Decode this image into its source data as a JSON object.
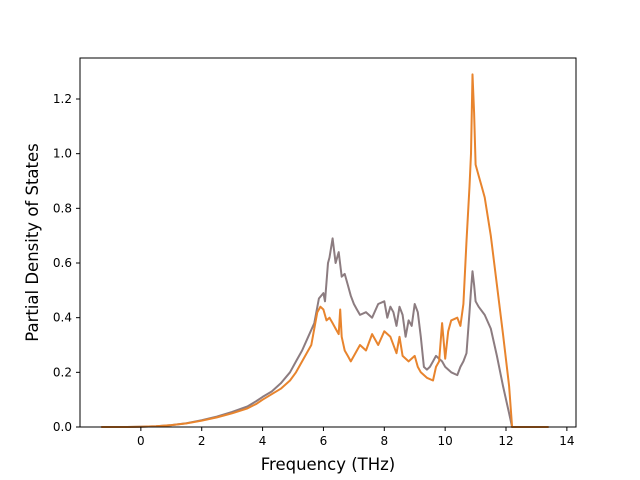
{
  "chart_data": {
    "type": "line",
    "title": "",
    "xlabel": "Frequency (THz)",
    "ylabel": "Partial Density of States",
    "xlim": [
      -2.0,
      14.3
    ],
    "ylim": [
      0.0,
      1.35
    ],
    "xticks": [
      0,
      2,
      4,
      6,
      8,
      10,
      12,
      14
    ],
    "yticks": [
      0.0,
      0.2,
      0.4,
      0.6,
      0.8,
      1.0,
      1.2
    ],
    "xtick_labels": [
      "0",
      "2",
      "4",
      "6",
      "8",
      "10",
      "12",
      "14"
    ],
    "ytick_labels": [
      "0.0",
      "0.2",
      "0.4",
      "0.6",
      "0.8",
      "1.0",
      "1.2"
    ],
    "grid": false,
    "legend": false,
    "series": [
      {
        "color": "#8c7c80",
        "x": [
          -1.3,
          -0.5,
          0.0,
          0.5,
          1.0,
          1.5,
          2.0,
          2.5,
          3.0,
          3.5,
          3.8,
          4.0,
          4.3,
          4.6,
          4.9,
          5.1,
          5.3,
          5.5,
          5.7,
          5.85,
          6.0,
          6.05,
          6.15,
          6.2,
          6.3,
          6.4,
          6.5,
          6.6,
          6.7,
          6.8,
          6.9,
          7.0,
          7.1,
          7.2,
          7.4,
          7.6,
          7.8,
          8.0,
          8.1,
          8.2,
          8.3,
          8.4,
          8.5,
          8.6,
          8.7,
          8.8,
          8.9,
          9.0,
          9.1,
          9.2,
          9.3,
          9.4,
          9.5,
          9.6,
          9.7,
          9.8,
          9.9,
          10.0,
          10.2,
          10.4,
          10.5,
          10.6,
          10.7,
          10.8,
          10.85,
          10.9,
          10.95,
          11.0,
          11.1,
          11.3,
          11.5,
          11.7,
          11.9,
          12.1,
          12.2,
          12.5,
          13.4
        ],
        "y": [
          0.0,
          0.0,
          0.001,
          0.003,
          0.007,
          0.014,
          0.025,
          0.038,
          0.055,
          0.075,
          0.095,
          0.11,
          0.13,
          0.16,
          0.2,
          0.24,
          0.28,
          0.33,
          0.38,
          0.47,
          0.49,
          0.46,
          0.6,
          0.62,
          0.69,
          0.6,
          0.64,
          0.55,
          0.56,
          0.52,
          0.48,
          0.45,
          0.43,
          0.41,
          0.42,
          0.4,
          0.45,
          0.46,
          0.4,
          0.44,
          0.42,
          0.37,
          0.44,
          0.41,
          0.33,
          0.39,
          0.37,
          0.45,
          0.42,
          0.33,
          0.22,
          0.21,
          0.22,
          0.24,
          0.26,
          0.25,
          0.24,
          0.22,
          0.2,
          0.19,
          0.22,
          0.24,
          0.27,
          0.42,
          0.5,
          0.57,
          0.52,
          0.46,
          0.44,
          0.41,
          0.36,
          0.26,
          0.15,
          0.05,
          0.0,
          0.0,
          0.0
        ]
      },
      {
        "color": "#e8842d",
        "x": [
          -1.3,
          -0.5,
          0.0,
          0.5,
          1.0,
          1.5,
          2.0,
          2.5,
          3.0,
          3.5,
          3.8,
          4.0,
          4.3,
          4.6,
          4.9,
          5.1,
          5.3,
          5.5,
          5.6,
          5.7,
          5.8,
          5.9,
          6.0,
          6.1,
          6.2,
          6.3,
          6.4,
          6.5,
          6.55,
          6.6,
          6.7,
          6.8,
          6.9,
          7.0,
          7.1,
          7.2,
          7.4,
          7.6,
          7.8,
          8.0,
          8.2,
          8.4,
          8.5,
          8.6,
          8.8,
          9.0,
          9.1,
          9.2,
          9.4,
          9.6,
          9.7,
          9.8,
          9.9,
          10.0,
          10.1,
          10.2,
          10.4,
          10.5,
          10.6,
          10.7,
          10.8,
          10.85,
          10.9,
          10.95,
          11.0,
          11.1,
          11.2,
          11.3,
          11.5,
          11.7,
          11.9,
          12.1,
          12.2,
          12.5,
          13.4
        ],
        "y": [
          0.0,
          0.0,
          0.001,
          0.003,
          0.007,
          0.013,
          0.023,
          0.035,
          0.05,
          0.068,
          0.085,
          0.1,
          0.12,
          0.14,
          0.17,
          0.2,
          0.24,
          0.28,
          0.3,
          0.36,
          0.42,
          0.44,
          0.43,
          0.39,
          0.4,
          0.38,
          0.36,
          0.34,
          0.43,
          0.33,
          0.28,
          0.26,
          0.24,
          0.26,
          0.28,
          0.3,
          0.28,
          0.34,
          0.3,
          0.35,
          0.33,
          0.27,
          0.33,
          0.26,
          0.24,
          0.26,
          0.22,
          0.2,
          0.18,
          0.17,
          0.22,
          0.24,
          0.38,
          0.25,
          0.35,
          0.39,
          0.4,
          0.37,
          0.45,
          0.68,
          0.88,
          1.0,
          1.29,
          1.15,
          0.96,
          0.92,
          0.88,
          0.84,
          0.7,
          0.52,
          0.34,
          0.15,
          0.0,
          0.0,
          0.0
        ]
      }
    ]
  }
}
